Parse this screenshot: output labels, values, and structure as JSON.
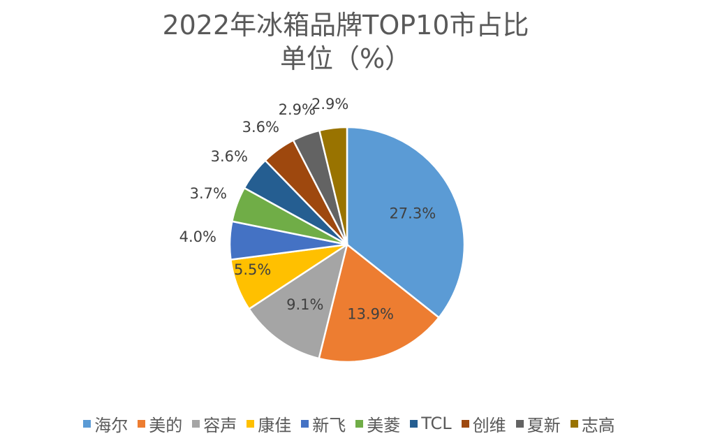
{
  "chart_data": {
    "type": "pie",
    "title": "2022年冰箱品牌TOP10市占比",
    "subtitle": "单位（%）",
    "categories": [
      "海尔",
      "美的",
      "容声",
      "康佳",
      "新飞",
      "美菱",
      "TCL",
      "创维",
      "夏新",
      "志高"
    ],
    "values": [
      27.3,
      13.9,
      9.1,
      5.5,
      4.0,
      3.7,
      3.6,
      3.6,
      2.9,
      2.9
    ],
    "labels": [
      "27.3%",
      "13.9%",
      "9.1%",
      "5.5%",
      "4.0%",
      "3.7%",
      "3.6%",
      "3.6%",
      "2.9%",
      "2.9%"
    ],
    "colors": [
      "#5B9BD5",
      "#ED7D31",
      "#A5A5A5",
      "#FFC000",
      "#4472C4",
      "#70AD47",
      "#255E91",
      "#9E480E",
      "#636363",
      "#997300"
    ],
    "legend_position": "bottom"
  }
}
